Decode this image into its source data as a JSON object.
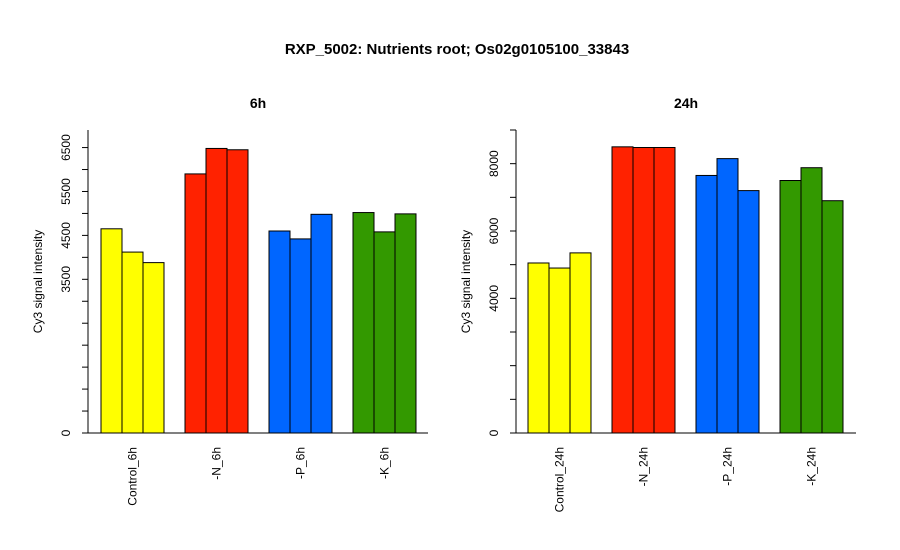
{
  "title": "RXP_5002: Nutrients root; Os02g0105100_33843",
  "chart_data": [
    {
      "type": "bar",
      "title": "6h",
      "ylabel": "Cy3 signal intensity",
      "xlabel": "",
      "ylim": [
        0,
        6900
      ],
      "yticks": [
        0,
        3500,
        4500,
        5500,
        6500
      ],
      "grid": false,
      "groups": [
        {
          "label": "Control_6h",
          "color": "#ffff00",
          "values": [
            4650,
            4120,
            3880
          ]
        },
        {
          "label": "-N_6h",
          "color": "#ff2200",
          "values": [
            5900,
            6480,
            6450
          ]
        },
        {
          "label": "-P_6h",
          "color": "#0066ff",
          "values": [
            4600,
            4420,
            4980
          ]
        },
        {
          "label": "-K_6h",
          "color": "#339900",
          "values": [
            5020,
            4580,
            4990
          ]
        }
      ]
    },
    {
      "type": "bar",
      "title": "24h",
      "ylabel": "Cy3 signal intensity",
      "xlabel": "",
      "ylim": [
        0,
        9000
      ],
      "yticks": [
        0,
        4000,
        6000,
        8000
      ],
      "grid": false,
      "groups": [
        {
          "label": "Control_24h",
          "color": "#ffff00",
          "values": [
            5050,
            4900,
            5350
          ]
        },
        {
          "label": "-N_24h",
          "color": "#ff2200",
          "values": [
            8500,
            8480,
            8480
          ]
        },
        {
          "label": "-P_24h",
          "color": "#0066ff",
          "values": [
            7650,
            8150,
            7200
          ]
        },
        {
          "label": "-K_24h",
          "color": "#339900",
          "values": [
            7500,
            7880,
            6900
          ]
        }
      ]
    }
  ]
}
